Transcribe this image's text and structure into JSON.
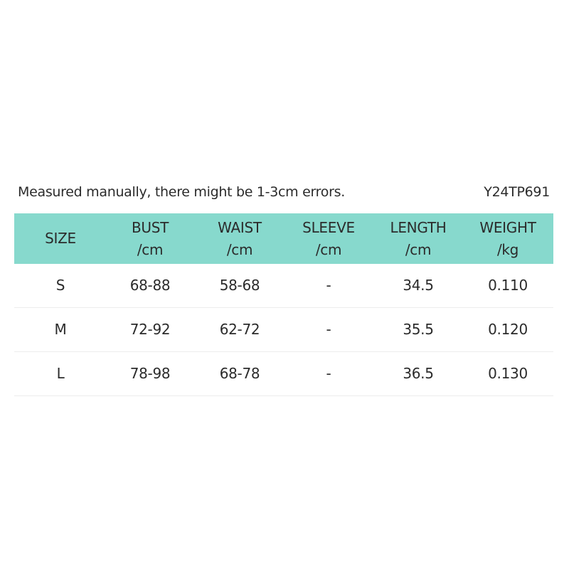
{
  "note": "Measured manually, there might be 1-3cm errors.",
  "code": "Y24TP691",
  "table": {
    "header": [
      [
        "SIZE"
      ],
      [
        "BUST",
        "/cm"
      ],
      [
        "WAIST",
        "/cm"
      ],
      [
        "SLEEVE",
        "/cm"
      ],
      [
        "LENGTH",
        "/cm"
      ],
      [
        "WEIGHT",
        "/kg"
      ]
    ],
    "rows": [
      [
        "S",
        "68-88",
        "58-68",
        "-",
        "34.5",
        "0.110"
      ],
      [
        "M",
        "72-92",
        "62-72",
        "-",
        "35.5",
        "0.120"
      ],
      [
        "L",
        "78-98",
        "68-78",
        "-",
        "36.5",
        "0.130"
      ]
    ]
  }
}
